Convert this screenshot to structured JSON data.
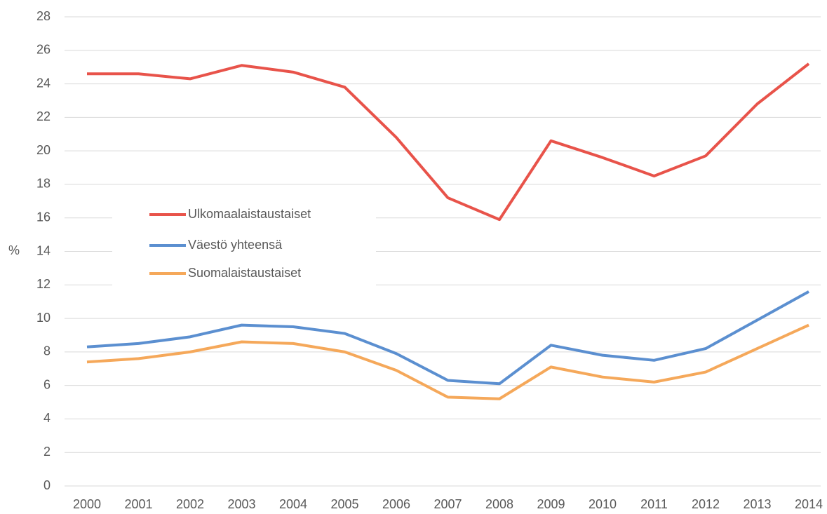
{
  "chart_data": {
    "type": "line",
    "y_label": "%",
    "categories": [
      "2000",
      "2001",
      "2002",
      "2003",
      "2004",
      "2005",
      "2006",
      "2007",
      "2008",
      "2009",
      "2010",
      "2011",
      "2012",
      "2013",
      "2014"
    ],
    "series": [
      {
        "name": "Ulkomaalaistaustaiset",
        "color": "#e8534a",
        "values": [
          24.6,
          24.6,
          24.3,
          25.1,
          24.7,
          23.8,
          20.8,
          17.2,
          15.9,
          20.6,
          19.6,
          18.5,
          19.7,
          22.8,
          25.2
        ]
      },
      {
        "name": "Väestö yhteensä",
        "color": "#5b8fd0",
        "values": [
          8.3,
          8.5,
          8.9,
          9.6,
          9.5,
          9.1,
          7.9,
          6.3,
          6.1,
          8.4,
          7.8,
          7.5,
          8.2,
          9.9,
          11.6
        ]
      },
      {
        "name": "Suomalaistaustaiset",
        "color": "#f5a85a",
        "values": [
          7.4,
          7.6,
          8.0,
          8.6,
          8.5,
          8.0,
          6.9,
          5.3,
          5.2,
          7.1,
          6.5,
          6.2,
          6.8,
          8.2,
          9.6
        ]
      }
    ],
    "ylim": [
      0,
      28
    ],
    "yticks": [
      0,
      2,
      4,
      6,
      8,
      10,
      12,
      14,
      16,
      18,
      20,
      22,
      24,
      26,
      28
    ],
    "grid": true
  }
}
